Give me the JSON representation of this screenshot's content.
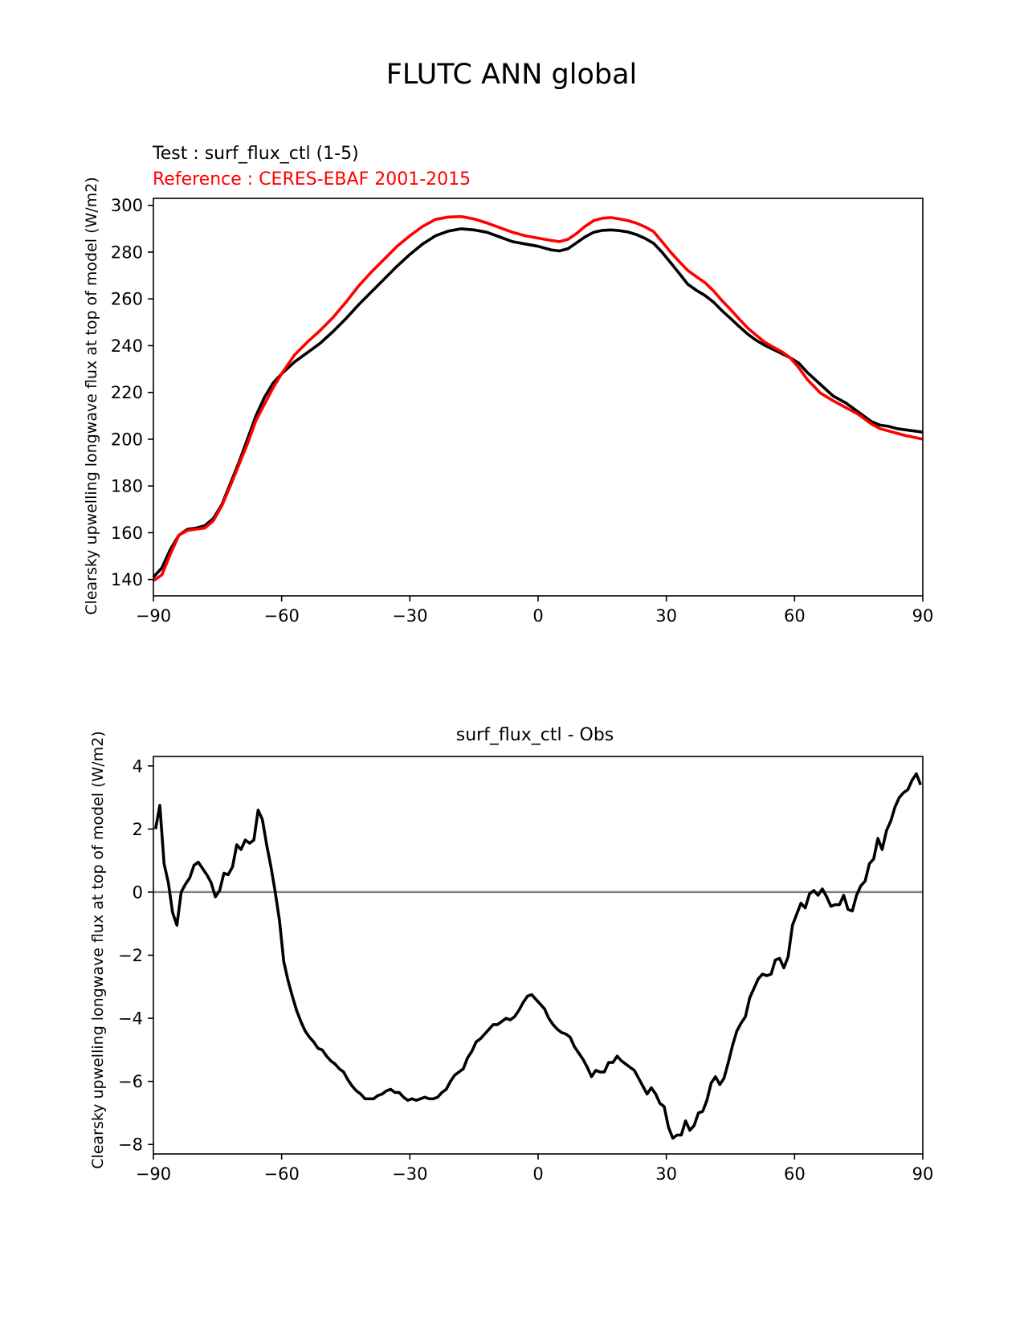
{
  "figure": {
    "title": "FLUTC ANN global"
  },
  "chart_data": [
    {
      "type": "line",
      "test_label": "Test : surf_flux_ctl (1-5)",
      "reference_label": "Reference : CERES-EBAF 2001-2015",
      "ylabel": "Clearsky upwelling longwave flux at top of model (W/m2)",
      "xlabel": "",
      "xlim": [
        -90,
        90
      ],
      "ylim": [
        133,
        303
      ],
      "xticks": [
        -90,
        -60,
        -30,
        0,
        30,
        60,
        90
      ],
      "yticks": [
        140,
        160,
        180,
        200,
        220,
        240,
        260,
        280,
        300
      ],
      "grid": false,
      "series": [
        {
          "color": "#000000",
          "x": [
            -90,
            -88,
            -86,
            -84,
            -82,
            -80,
            -78,
            -76,
            -74,
            -72,
            -70,
            -68,
            -66,
            -64,
            -62,
            -60,
            -57,
            -54,
            -51,
            -48,
            -45,
            -42,
            -39,
            -36,
            -33,
            -30,
            -27,
            -24,
            -21,
            -18,
            -15,
            -12,
            -9,
            -6,
            -3,
            0,
            3,
            5,
            7,
            9,
            11,
            13,
            15,
            17,
            19,
            21,
            23,
            25,
            27,
            29,
            31,
            33,
            35,
            37,
            39,
            41,
            43,
            45,
            47,
            49,
            51,
            53,
            55,
            57,
            59,
            61,
            63,
            66,
            69,
            72,
            75,
            78,
            80,
            82,
            84,
            86,
            88,
            90
          ],
          "values": [
            141,
            145,
            153,
            159,
            161.5,
            162,
            163,
            166,
            172,
            181,
            190,
            200,
            210,
            218,
            224,
            228,
            233,
            237,
            241,
            246,
            251.5,
            257.5,
            263,
            268.5,
            274,
            279,
            283.5,
            287,
            289,
            290,
            289.5,
            288.5,
            286.5,
            284.5,
            283.5,
            282.5,
            281,
            280.5,
            281.5,
            284,
            286.5,
            288.5,
            289.3,
            289.5,
            289.2,
            288.6,
            287.5,
            285.9,
            283.8,
            280,
            275.5,
            271,
            266.3,
            263.7,
            261.5,
            258.7,
            255,
            251.7,
            248.3,
            245,
            242.3,
            240.2,
            238.4,
            236.6,
            234.8,
            232.5,
            228.5,
            223.5,
            218.5,
            215.5,
            211.5,
            207.5,
            206,
            205.5,
            204.5,
            204,
            203.5,
            203
          ]
        },
        {
          "color": "#ff0000",
          "x": [
            -90,
            -88,
            -86,
            -84,
            -82,
            -80,
            -78,
            -76,
            -74,
            -72,
            -70,
            -68,
            -66,
            -64,
            -62,
            -60,
            -57,
            -54,
            -51,
            -48,
            -45,
            -42,
            -39,
            -36,
            -33,
            -30,
            -27,
            -24,
            -21,
            -18,
            -15,
            -12,
            -9,
            -6,
            -3,
            0,
            3,
            5,
            7,
            9,
            11,
            13,
            15,
            17,
            19,
            21,
            23,
            25,
            27,
            29,
            31,
            33,
            35,
            37,
            39,
            41,
            43,
            45,
            47,
            49,
            51,
            53,
            55,
            57,
            59,
            61,
            63,
            66,
            69,
            72,
            75,
            78,
            80,
            82,
            84,
            86,
            88,
            90
          ],
          "values": [
            139.5,
            142,
            151,
            159,
            161,
            161.5,
            162,
            165,
            171.5,
            180,
            189,
            198,
            208,
            215,
            222,
            228,
            236,
            241.5,
            246.5,
            252,
            258.5,
            265.5,
            271.5,
            277,
            282.5,
            287,
            291,
            294,
            295,
            295.2,
            294.2,
            292.5,
            290.5,
            288.5,
            287,
            286,
            285,
            284.5,
            285.5,
            288,
            291,
            293.5,
            294.5,
            294.8,
            294.2,
            293.5,
            292.4,
            290.8,
            288.8,
            284.5,
            280,
            276,
            272.2,
            269.5,
            267,
            263.5,
            259.3,
            255.5,
            251.5,
            247.6,
            244.5,
            241.5,
            239.4,
            237.4,
            234.8,
            230.5,
            225.5,
            219.8,
            216.5,
            213.5,
            210.5,
            206.5,
            204.5,
            203.5,
            202.5,
            201.5,
            200.8,
            200
          ]
        }
      ]
    },
    {
      "type": "line",
      "title": "surf_flux_ctl - Obs",
      "ylabel": "Clearsky upwelling longwave flux at top of model (W/m2)",
      "xlabel": "",
      "xlim": [
        -90,
        90
      ],
      "ylim": [
        -8.3,
        4.3
      ],
      "xticks": [
        -90,
        -60,
        -30,
        0,
        30,
        60,
        90
      ],
      "yticks": [
        -8,
        -6,
        -4,
        -2,
        0,
        2,
        4
      ],
      "grid": false,
      "zero_line_color": "#808080",
      "series": [
        {
          "color": "#000000",
          "x": [
            -89.5,
            -88.5,
            -87.5,
            -86.5,
            -85.5,
            -84.5,
            -83.5,
            -82.5,
            -81.5,
            -80.5,
            -79.5,
            -78.5,
            -77.5,
            -76.5,
            -75.5,
            -74.5,
            -73.5,
            -72.5,
            -71.5,
            -70.5,
            -69.5,
            -68.5,
            -67.5,
            -66.5,
            -65.5,
            -64.5,
            -63.5,
            -62.5,
            -61.5,
            -60.5,
            -59.5,
            -58.5,
            -57.5,
            -56.5,
            -55.5,
            -54.5,
            -53.5,
            -52.5,
            -51.5,
            -50.5,
            -49.5,
            -48.5,
            -47.5,
            -46.5,
            -45.5,
            -44.5,
            -43.5,
            -42.5,
            -41.5,
            -40.5,
            -39.5,
            -38.5,
            -37.5,
            -36.5,
            -35.5,
            -34.5,
            -33.5,
            -32.5,
            -31.5,
            -30.5,
            -29.5,
            -28.5,
            -27.5,
            -26.5,
            -25.5,
            -24.5,
            -23.5,
            -22.5,
            -21.5,
            -20.5,
            -19.5,
            -18.5,
            -17.5,
            -16.5,
            -15.5,
            -14.5,
            -13.5,
            -12.5,
            -11.5,
            -10.5,
            -9.5,
            -8.5,
            -7.5,
            -6.5,
            -5.5,
            -4.5,
            -3.5,
            -2.5,
            -1.5,
            -0.5,
            0.5,
            1.5,
            2.5,
            3.5,
            4.5,
            5.5,
            6.5,
            7.5,
            8.5,
            9.5,
            10.5,
            11.5,
            12.5,
            13.5,
            14.5,
            15.5,
            16.5,
            17.5,
            18.5,
            19.5,
            20.5,
            21.5,
            22.5,
            23.5,
            24.5,
            25.5,
            26.5,
            27.5,
            28.5,
            29.5,
            30.5,
            31.5,
            32.5,
            33.5,
            34.5,
            35.5,
            36.5,
            37.5,
            38.5,
            39.5,
            40.5,
            41.5,
            42.5,
            43.5,
            44.5,
            45.5,
            46.5,
            47.5,
            48.5,
            49.5,
            50.5,
            51.5,
            52.5,
            53.5,
            54.5,
            55.5,
            56.5,
            57.5,
            58.5,
            59.5,
            60.5,
            61.5,
            62.5,
            63.5,
            64.5,
            65.5,
            66.5,
            67.5,
            68.5,
            69.5,
            70.5,
            71.5,
            72.5,
            73.5,
            74.5,
            75.5,
            76.5,
            77.5,
            78.5,
            79.5,
            80.5,
            81.5,
            82.5,
            83.5,
            84.5,
            85.5,
            86.5,
            87.5,
            88.5,
            89.5
          ],
          "values": [
            2.0,
            2.75,
            0.9,
            0.3,
            -0.65,
            -1.05,
            0.0,
            0.25,
            0.45,
            0.85,
            0.95,
            0.75,
            0.55,
            0.3,
            -0.15,
            0.05,
            0.6,
            0.55,
            0.8,
            1.5,
            1.35,
            1.65,
            1.55,
            1.65,
            2.6,
            2.3,
            1.5,
            0.8,
            0.0,
            -0.9,
            -2.2,
            -2.8,
            -3.3,
            -3.75,
            -4.1,
            -4.4,
            -4.6,
            -4.75,
            -4.95,
            -5.0,
            -5.2,
            -5.35,
            -5.45,
            -5.6,
            -5.7,
            -5.95,
            -6.15,
            -6.3,
            -6.4,
            -6.55,
            -6.55,
            -6.55,
            -6.45,
            -6.4,
            -6.3,
            -6.25,
            -6.35,
            -6.35,
            -6.5,
            -6.6,
            -6.55,
            -6.6,
            -6.55,
            -6.5,
            -6.55,
            -6.55,
            -6.5,
            -6.35,
            -6.25,
            -6.0,
            -5.8,
            -5.7,
            -5.6,
            -5.25,
            -5.05,
            -4.75,
            -4.65,
            -4.5,
            -4.35,
            -4.2,
            -4.2,
            -4.1,
            -4.0,
            -4.05,
            -3.95,
            -3.75,
            -3.5,
            -3.3,
            -3.25,
            -3.4,
            -3.55,
            -3.7,
            -4.0,
            -4.2,
            -4.35,
            -4.45,
            -4.5,
            -4.6,
            -4.9,
            -5.1,
            -5.3,
            -5.55,
            -5.85,
            -5.65,
            -5.7,
            -5.7,
            -5.4,
            -5.4,
            -5.2,
            -5.35,
            -5.45,
            -5.55,
            -5.65,
            -5.9,
            -6.15,
            -6.4,
            -6.2,
            -6.4,
            -6.7,
            -6.8,
            -7.45,
            -7.8,
            -7.7,
            -7.7,
            -7.25,
            -7.55,
            -7.4,
            -7.0,
            -6.95,
            -6.6,
            -6.05,
            -5.85,
            -6.1,
            -5.9,
            -5.4,
            -4.85,
            -4.4,
            -4.15,
            -3.95,
            -3.35,
            -3.05,
            -2.75,
            -2.6,
            -2.65,
            -2.6,
            -2.15,
            -2.1,
            -2.4,
            -2.05,
            -1.05,
            -0.7,
            -0.35,
            -0.5,
            -0.05,
            0.05,
            -0.1,
            0.1,
            -0.15,
            -0.45,
            -0.4,
            -0.4,
            -0.1,
            -0.55,
            -0.6,
            -0.1,
            0.2,
            0.35,
            0.9,
            1.05,
            1.7,
            1.35,
            1.95,
            2.25,
            2.7,
            3.0,
            3.15,
            3.25,
            3.55,
            3.75,
            3.4
          ]
        }
      ]
    }
  ]
}
